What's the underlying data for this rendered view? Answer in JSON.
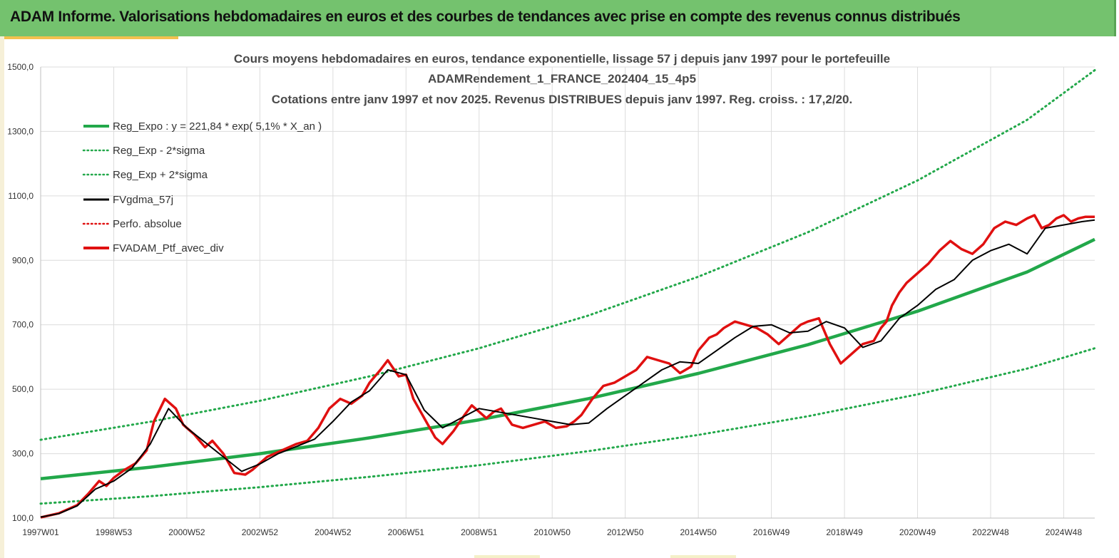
{
  "header": {
    "title": "ADAM Informe. Valorisations hebdomadaires en euros et des courbes de tendances avec prise en compte des revenus connus distribués"
  },
  "colors": {
    "green": "#22a84a",
    "black": "#000000",
    "red": "#e01010",
    "header_bg": "#74c26e",
    "grid": "#dcdcdc"
  },
  "chart_data": {
    "type": "line",
    "title_lines": [
      "Cours moyens hebdomadaires  en euros, tendance exponentielle, lissage 57 j depuis janv 1997 pour le portefeuille",
      "ADAMRendement_1_FRANCE_202404_15_4p5",
      "Cotations  entre janv 1997 et nov 2025. Revenus DISTRIBUES depuis janv 1997. Reg. croiss. : 17,2/20."
    ],
    "y_range": [
      100,
      1500
    ],
    "y_ticks": [
      "1500,0",
      "1300,0",
      "1100,0",
      "900,0",
      "700,0",
      "500,0",
      "300,0",
      "100,0"
    ],
    "y_tick_values": [
      1500,
      1300,
      1100,
      900,
      700,
      500,
      300,
      100
    ],
    "x_range": [
      1997.0,
      2025.85
    ],
    "x_ticks": [
      "1997W01",
      "1998W53",
      "2000W52",
      "2002W52",
      "2004W52",
      "2006W51",
      "2008W51",
      "2010W50",
      "2012W50",
      "2014W50",
      "2016W49",
      "2018W49",
      "2020W49",
      "2022W48",
      "2024W48"
    ],
    "x_tick_values": [
      1997.0,
      1999.0,
      2001.0,
      2003.0,
      2005.0,
      2007.0,
      2009.0,
      2011.0,
      2013.0,
      2015.0,
      2017.0,
      2019.0,
      2021.0,
      2023.0,
      2025.0
    ],
    "grid": true,
    "legend_position": "top-left",
    "legend": [
      {
        "label": "Reg_Expo : y = 221,84 * exp( 5,1% *  X_an )",
        "style": "solid-thick",
        "color": "#22a84a"
      },
      {
        "label": "Reg_Exp - 2*sigma",
        "style": "dotted",
        "color": "#22a84a"
      },
      {
        "label": "Reg_Exp + 2*sigma",
        "style": "dotted",
        "color": "#22a84a"
      },
      {
        "label": "FVgdma_57j",
        "style": "solid",
        "color": "#000000"
      },
      {
        "label": "Perfo. absolue",
        "style": "dotted",
        "color": "#e01010"
      },
      {
        "label": "FVADAM_Ptf_avec_div",
        "style": "solid-thick",
        "color": "#e01010"
      }
    ],
    "series": [
      {
        "name": "Reg_Expo",
        "x": [
          1997.0,
          2000.0,
          2003.0,
          2006.0,
          2009.0,
          2012.0,
          2015.0,
          2018.0,
          2021.0,
          2024.0,
          2025.85
        ],
        "values": [
          222,
          258,
          300,
          349,
          405,
          471,
          549,
          638,
          742,
          864,
          965
        ]
      },
      {
        "name": "Reg_Exp - 2*sigma",
        "x": [
          1997.0,
          2000.0,
          2003.0,
          2006.0,
          2009.0,
          2012.0,
          2015.0,
          2018.0,
          2021.0,
          2024.0,
          2025.85
        ],
        "values": [
          145,
          168,
          196,
          228,
          264,
          308,
          358,
          416,
          484,
          564,
          627
        ]
      },
      {
        "name": "Reg_Exp + 2*sigma",
        "x": [
          1997.0,
          2000.0,
          2003.0,
          2006.0,
          2009.0,
          2012.0,
          2015.0,
          2018.0,
          2021.0,
          2024.0,
          2025.85
        ],
        "values": [
          343,
          399,
          464,
          540,
          627,
          729,
          849,
          987,
          1148,
          1336,
          1490
        ]
      },
      {
        "name": "FVADAM_Ptf_avec_div",
        "x": [
          1997.0,
          1997.5,
          1998.0,
          1998.3,
          1998.6,
          1998.8,
          1999.0,
          1999.3,
          1999.6,
          1999.9,
          2000.1,
          2000.4,
          2000.7,
          2000.9,
          2001.2,
          2001.5,
          2001.7,
          2002.0,
          2002.3,
          2002.6,
          2002.8,
          2003.0,
          2003.2,
          2003.5,
          2003.8,
          2004.0,
          2004.3,
          2004.6,
          2004.9,
          2005.2,
          2005.5,
          2005.8,
          2006.0,
          2006.3,
          2006.5,
          2006.8,
          2007.0,
          2007.2,
          2007.4,
          2007.6,
          2007.8,
          2008.0,
          2008.3,
          2008.6,
          2008.8,
          2009.0,
          2009.2,
          2009.4,
          2009.6,
          2009.9,
          2010.2,
          2010.5,
          2010.8,
          2011.1,
          2011.4,
          2011.6,
          2011.8,
          2012.1,
          2012.4,
          2012.7,
          2013.0,
          2013.3,
          2013.6,
          2013.9,
          2014.2,
          2014.5,
          2014.8,
          2015.0,
          2015.3,
          2015.5,
          2015.7,
          2016.0,
          2016.3,
          2016.6,
          2016.9,
          2017.2,
          2017.5,
          2017.8,
          2018.0,
          2018.3,
          2018.6,
          2018.9,
          2019.2,
          2019.5,
          2019.8,
          2020.0,
          2020.15,
          2020.3,
          2020.5,
          2020.7,
          2021.0,
          2021.3,
          2021.6,
          2021.9,
          2022.2,
          2022.5,
          2022.8,
          2023.1,
          2023.4,
          2023.7,
          2024.0,
          2024.2,
          2024.4,
          2024.6,
          2024.8,
          2025.0,
          2025.2,
          2025.4,
          2025.6,
          2025.85
        ],
        "values": [
          102,
          115,
          140,
          175,
          215,
          200,
          225,
          250,
          270,
          310,
          400,
          470,
          440,
          390,
          360,
          320,
          340,
          300,
          240,
          235,
          250,
          270,
          290,
          305,
          320,
          330,
          340,
          380,
          440,
          470,
          455,
          480,
          520,
          560,
          590,
          540,
          545,
          470,
          430,
          390,
          350,
          330,
          370,
          420,
          450,
          430,
          410,
          430,
          440,
          390,
          380,
          390,
          400,
          380,
          385,
          400,
          420,
          470,
          510,
          520,
          540,
          560,
          600,
          590,
          580,
          550,
          570,
          620,
          660,
          670,
          690,
          710,
          700,
          690,
          670,
          640,
          670,
          700,
          710,
          720,
          640,
          580,
          610,
          640,
          650,
          690,
          710,
          760,
          800,
          830,
          860,
          890,
          930,
          960,
          935,
          920,
          950,
          1000,
          1020,
          1010,
          1030,
          1040,
          1000,
          1010,
          1030,
          1040,
          1020,
          1030,
          1035,
          1035
        ]
      },
      {
        "name": "FVgdma_57j",
        "x": [
          1997.0,
          1997.5,
          1998.0,
          1998.5,
          1999.0,
          1999.5,
          2000.0,
          2000.5,
          2001.0,
          2001.5,
          2002.0,
          2002.5,
          2003.0,
          2003.5,
          2004.0,
          2004.5,
          2005.0,
          2005.5,
          2006.0,
          2006.5,
          2007.0,
          2007.5,
          2008.0,
          2008.5,
          2009.0,
          2009.5,
          2010.0,
          2010.5,
          2011.0,
          2011.5,
          2012.0,
          2012.5,
          2013.0,
          2013.5,
          2014.0,
          2014.5,
          2015.0,
          2015.5,
          2016.0,
          2016.5,
          2017.0,
          2017.5,
          2018.0,
          2018.5,
          2019.0,
          2019.5,
          2020.0,
          2020.5,
          2021.0,
          2021.5,
          2022.0,
          2022.5,
          2023.0,
          2023.5,
          2024.0,
          2024.5,
          2025.0,
          2025.5,
          2025.85
        ],
        "values": [
          103,
          114,
          138,
          190,
          215,
          255,
          330,
          440,
          380,
          335,
          290,
          245,
          268,
          300,
          322,
          345,
          400,
          460,
          495,
          560,
          545,
          435,
          380,
          410,
          440,
          430,
          420,
          410,
          400,
          390,
          395,
          440,
          480,
          520,
          560,
          585,
          580,
          620,
          660,
          695,
          700,
          675,
          680,
          710,
          690,
          630,
          650,
          720,
          760,
          810,
          840,
          900,
          930,
          950,
          920,
          1000,
          1010,
          1020,
          1025
        ]
      }
    ]
  }
}
